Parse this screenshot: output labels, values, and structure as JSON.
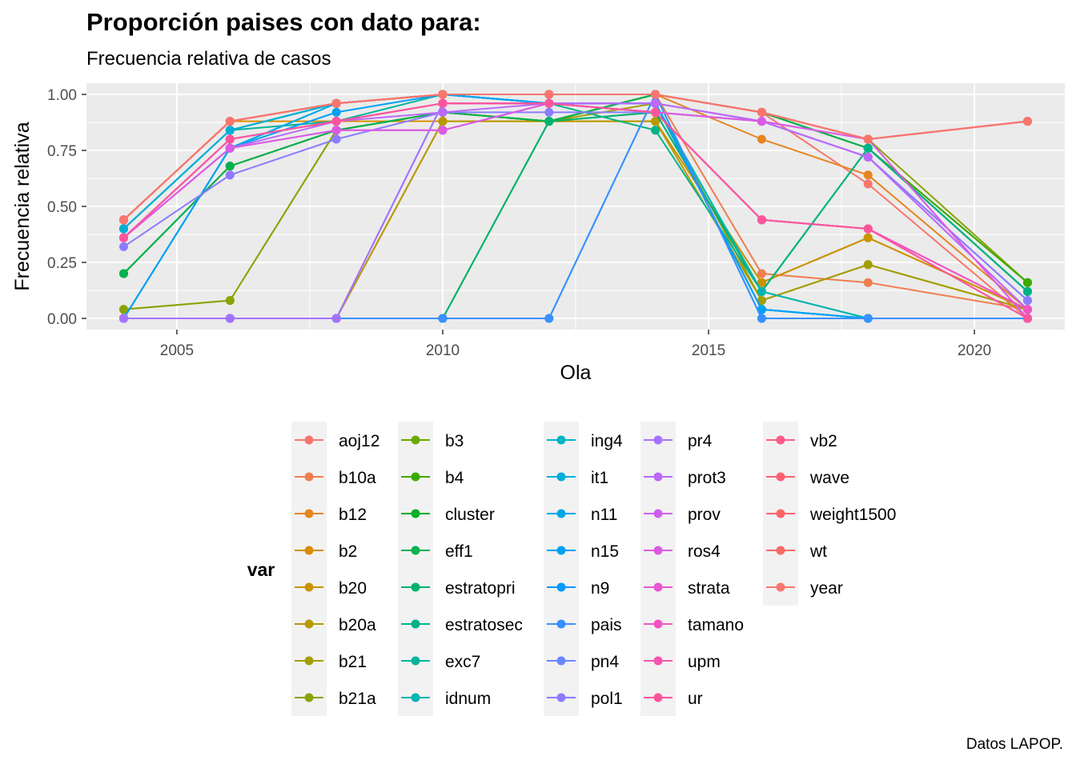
{
  "title": "Proporción paises con dato para:",
  "subtitle": "Frecuencia relativa de casos",
  "caption": "Datos LAPOP.",
  "chart_data": {
    "type": "line",
    "xlabel": "Ola",
    "ylabel": "Frecuencia relativa",
    "xlim": [
      2003.3,
      2021.7
    ],
    "ylim": [
      -0.05,
      1.05
    ],
    "x_ticks": [
      2005,
      2010,
      2015,
      2020
    ],
    "y_ticks": [
      0,
      0.25,
      0.5,
      0.75,
      1
    ],
    "y_tick_labels": [
      "0.00",
      "0.25",
      "0.50",
      "0.75",
      "1.00"
    ],
    "grid": true,
    "legend_title": "var",
    "legend_position": "bottom",
    "x": [
      2004,
      2006,
      2008,
      2010,
      2012,
      2014,
      2016,
      2018,
      2021
    ],
    "series": [
      {
        "name": "aoj12",
        "color": "#F8766D",
        "values": [
          0.44,
          0.88,
          0.96,
          1.0,
          1.0,
          1.0,
          0.92,
          0.6,
          0.0
        ]
      },
      {
        "name": "b10a",
        "color": "#F07E4E",
        "values": [
          0.44,
          0.88,
          0.96,
          1.0,
          1.0,
          1.0,
          0.2,
          0.16,
          0.04
        ]
      },
      {
        "name": "b12",
        "color": "#E6851F",
        "values": [
          0.44,
          0.88,
          0.96,
          1.0,
          1.0,
          1.0,
          0.8,
          0.64,
          0.04
        ]
      },
      {
        "name": "b2",
        "color": "#D98C00",
        "values": [
          0.44,
          0.88,
          0.88,
          0.88,
          0.88,
          0.88,
          0.16,
          0.36,
          0.04
        ]
      },
      {
        "name": "b20",
        "color": "#CA9300",
        "values": [
          0.0,
          0.0,
          0.0,
          0.88,
          0.88,
          0.88,
          0.16,
          0.36,
          0.04
        ]
      },
      {
        "name": "b20a",
        "color": "#B89900",
        "values": [
          0.0,
          0.0,
          0.0,
          0.88,
          0.88,
          0.88,
          0.08,
          0.24,
          0.04
        ]
      },
      {
        "name": "b21",
        "color": "#A39E00",
        "values": [
          0.04,
          0.08,
          0.84,
          0.92,
          0.88,
          0.96,
          0.08,
          0.24,
          0.04
        ]
      },
      {
        "name": "b21a",
        "color": "#8AA300",
        "values": [
          0.04,
          0.08,
          0.84,
          0.92,
          0.88,
          1.0,
          0.92,
          0.8,
          0.16
        ]
      },
      {
        "name": "b3",
        "color": "#6BA800",
        "values": [
          0.2,
          0.68,
          0.84,
          0.92,
          0.88,
          1.0,
          0.92,
          0.76,
          0.16
        ]
      },
      {
        "name": "b4",
        "color": "#3BAB00",
        "values": [
          0.2,
          0.68,
          0.84,
          0.92,
          0.88,
          1.0,
          0.92,
          0.76,
          0.16
        ]
      },
      {
        "name": "cluster",
        "color": "#00AE29",
        "values": [
          0.0,
          0.0,
          0.0,
          0.0,
          0.88,
          0.92,
          0.12,
          0.76,
          0.12
        ]
      },
      {
        "name": "eff1",
        "color": "#00B052",
        "values": [
          0.2,
          0.68,
          0.84,
          0.92,
          0.88,
          1.0,
          0.92,
          0.76,
          0.12
        ]
      },
      {
        "name": "estratopri",
        "color": "#00B26E",
        "values": [
          0.0,
          0.0,
          0.0,
          0.0,
          0.88,
          0.92,
          0.12,
          0.76,
          0.12
        ]
      },
      {
        "name": "estratosec",
        "color": "#00B387",
        "values": [
          0.4,
          0.84,
          0.96,
          1.0,
          0.96,
          0.84,
          0.12,
          0.76,
          0.12
        ]
      },
      {
        "name": "exc7",
        "color": "#00B49D",
        "values": [
          0.4,
          0.84,
          0.88,
          1.0,
          0.96,
          0.96,
          0.12,
          0.0,
          0.0
        ]
      },
      {
        "name": "idnum",
        "color": "#00B5B2",
        "values": [
          0.4,
          0.84,
          0.96,
          1.0,
          0.96,
          0.96,
          0.12,
          0.0,
          0.0
        ]
      },
      {
        "name": "ing4",
        "color": "#00B3C6",
        "values": [
          0.0,
          0.76,
          0.96,
          1.0,
          0.96,
          0.96,
          0.04,
          0.0,
          0.0
        ]
      },
      {
        "name": "it1",
        "color": "#00AED8",
        "values": [
          0.4,
          0.84,
          0.96,
          1.0,
          0.96,
          0.96,
          0.04,
          0.0,
          0.0
        ]
      },
      {
        "name": "n11",
        "color": "#00A8E8",
        "values": [
          0.0,
          0.76,
          0.96,
          1.0,
          0.96,
          0.96,
          0.04,
          0.0,
          0.0
        ]
      },
      {
        "name": "n15",
        "color": "#00A1F5",
        "values": [
          0.0,
          0.76,
          0.92,
          1.0,
          0.96,
          0.96,
          0.04,
          0.0,
          0.0
        ]
      },
      {
        "name": "n9",
        "color": "#0099FF",
        "values": [
          0.0,
          0.0,
          0.0,
          0.0,
          0.0,
          1.0,
          0.0,
          0.0,
          0.0
        ]
      },
      {
        "name": "pais",
        "color": "#3A90FF",
        "values": [
          0.0,
          0.0,
          0.0,
          0.0,
          0.0,
          1.0,
          0.0,
          0.0,
          0.0
        ]
      },
      {
        "name": "pn4",
        "color": "#6A86FF",
        "values": [
          0.0,
          0.0,
          0.0,
          0.96,
          0.96,
          0.96,
          0.88,
          0.72,
          0.08
        ]
      },
      {
        "name": "pol1",
        "color": "#8B7CFF",
        "values": [
          0.32,
          0.64,
          0.8,
          0.92,
          0.92,
          0.92,
          0.88,
          0.72,
          0.08
        ]
      },
      {
        "name": "pr4",
        "color": "#A572FF",
        "values": [
          0.0,
          0.0,
          0.0,
          0.96,
          0.96,
          0.96,
          0.88,
          0.72,
          0.04
        ]
      },
      {
        "name": "prot3",
        "color": "#BB69F8",
        "values": [
          0.36,
          0.76,
          0.88,
          0.92,
          0.96,
          0.96,
          0.88,
          0.72,
          0.04
        ]
      },
      {
        "name": "prov",
        "color": "#CD61EE",
        "values": [
          0.36,
          0.76,
          0.84,
          0.84,
          0.96,
          0.92,
          0.88,
          0.8,
          0.0
        ]
      },
      {
        "name": "ros4",
        "color": "#DC5AE3",
        "values": [
          0.36,
          0.76,
          0.84,
          0.84,
          0.96,
          0.92,
          0.88,
          0.8,
          0.0
        ]
      },
      {
        "name": "strata",
        "color": "#E856D4",
        "values": [
          0.36,
          0.8,
          0.88,
          0.96,
          0.96,
          0.92,
          0.44,
          0.4,
          0.04
        ]
      },
      {
        "name": "tamano",
        "color": "#F153C3",
        "values": [
          0.36,
          0.8,
          0.88,
          0.96,
          0.96,
          0.92,
          0.44,
          0.4,
          0.04
        ]
      },
      {
        "name": "upm",
        "color": "#F753B0",
        "values": [
          0.36,
          0.8,
          0.88,
          0.96,
          0.96,
          0.92,
          0.44,
          0.4,
          0.0
        ]
      },
      {
        "name": "ur",
        "color": "#FB569C",
        "values": [
          0.36,
          0.8,
          0.88,
          0.96,
          0.96,
          0.92,
          0.44,
          0.4,
          0.0
        ]
      },
      {
        "name": "vb2",
        "color": "#FD5B88",
        "values": [
          0.44,
          0.88,
          0.96,
          1.0,
          1.0,
          1.0,
          0.92,
          0.8,
          0.88
        ]
      },
      {
        "name": "wave",
        "color": "#FD6073",
        "values": [
          0.44,
          0.88,
          0.96,
          1.0,
          1.0,
          1.0,
          0.92,
          0.8,
          0.88
        ]
      },
      {
        "name": "weight1500",
        "color": "#FC646A",
        "values": [
          0.44,
          0.88,
          0.96,
          1.0,
          1.0,
          1.0,
          0.92,
          0.8,
          0.88
        ]
      },
      {
        "name": "wt",
        "color": "#FA6868",
        "values": [
          0.44,
          0.88,
          0.96,
          1.0,
          1.0,
          1.0,
          0.92,
          0.8,
          0.88
        ]
      },
      {
        "name": "year",
        "color": "#F8766D",
        "values": [
          0.44,
          0.88,
          0.96,
          1.0,
          1.0,
          1.0,
          0.92,
          0.8,
          0.88
        ]
      }
    ]
  }
}
